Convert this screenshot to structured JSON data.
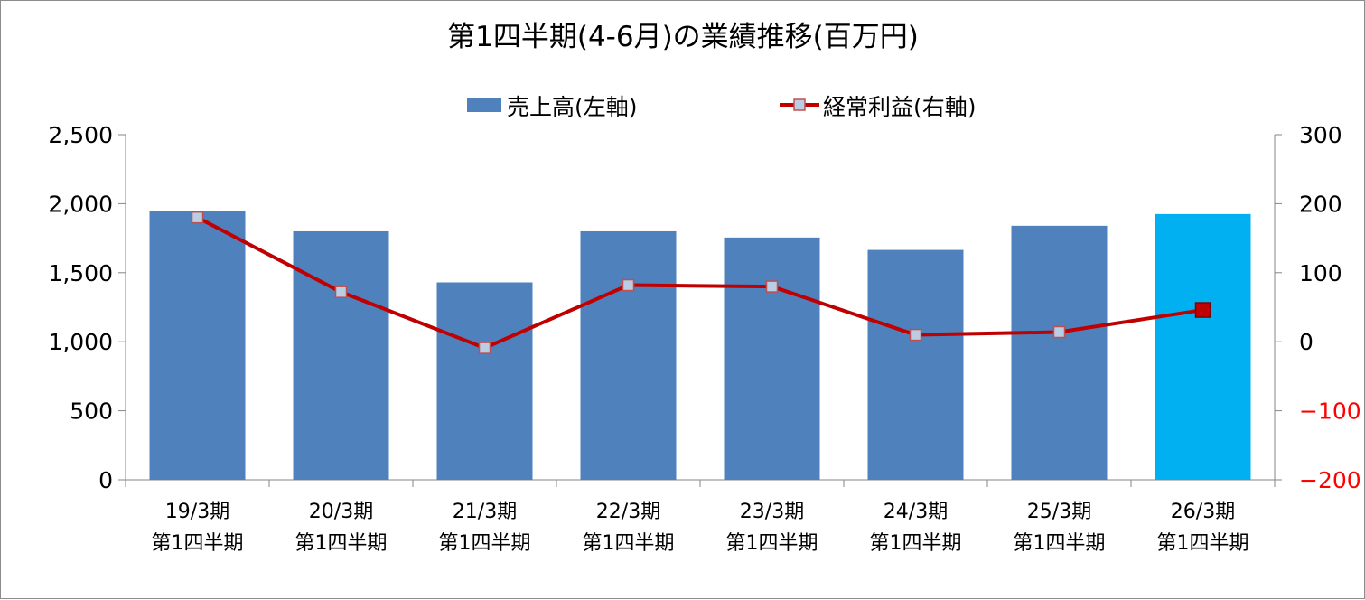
{
  "chart_data": {
    "type": "bar+line",
    "title": "第1四半期(4-6月)の業績推移(百万円)",
    "categories": [
      [
        "19/3期",
        "第1四半期"
      ],
      [
        "20/3期",
        "第1四半期"
      ],
      [
        "21/3期",
        "第1四半期"
      ],
      [
        "22/3期",
        "第1四半期"
      ],
      [
        "23/3期",
        "第1四半期"
      ],
      [
        "24/3期",
        "第1四半期"
      ],
      [
        "25/3期",
        "第1四半期"
      ],
      [
        "26/3期",
        "第1四半期"
      ]
    ],
    "series": [
      {
        "name": "売上高(左軸)",
        "type": "bar",
        "axis": "left",
        "color": "#4f81bd",
        "highlight_color": "#00b0f0",
        "highlight_index": 7,
        "values": [
          1945,
          1800,
          1430,
          1800,
          1755,
          1665,
          1840,
          1925
        ]
      },
      {
        "name": "経常利益(右軸)",
        "type": "line",
        "axis": "right",
        "color": "#c00000",
        "marker_color": "#b9cde5",
        "highlight_marker_color": "#c00000",
        "highlight_index": 7,
        "values": [
          180,
          72,
          -9,
          82,
          80,
          10,
          14,
          46
        ]
      }
    ],
    "y_left": {
      "ylim": [
        0,
        2500
      ],
      "ticks": [
        0,
        500,
        1000,
        1500,
        2000,
        2500
      ],
      "tick_labels": [
        "0",
        "500",
        "1,000",
        "1,500",
        "2,000",
        "2,500"
      ]
    },
    "y_right": {
      "ylim": [
        -200,
        300
      ],
      "ticks": [
        -200,
        -100,
        0,
        100,
        200,
        300
      ],
      "tick_labels": [
        "−200",
        "−100",
        "0",
        "100",
        "200",
        "300"
      ],
      "negative_color": "#ff0000"
    },
    "legend_position": "top",
    "grid": false
  }
}
